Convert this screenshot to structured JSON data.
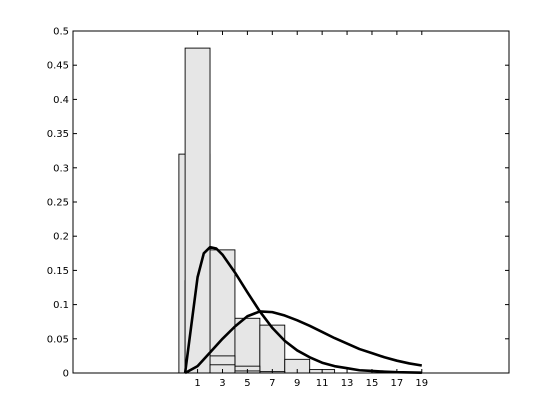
{
  "chart_data": {
    "type": "bar",
    "title": "",
    "xlabel": "",
    "ylabel": "",
    "xlim": [
      -9,
      26
    ],
    "ylim": [
      0,
      0.5
    ],
    "x_ticks": [
      1,
      3,
      5,
      7,
      9,
      11,
      13,
      15,
      17,
      19
    ],
    "y_ticks": [
      0,
      0.05,
      0.1,
      0.15,
      0.2,
      0.25,
      0.3,
      0.35,
      0.4,
      0.45,
      0.5
    ],
    "grid": false,
    "legend": "none",
    "colors": {
      "bar_fill": "#e6e6e6",
      "bar_edge": "#000000",
      "curve": "#000000"
    },
    "histograms": [
      {
        "bins": [
          {
            "x0": -0.5,
            "x1": 2.0,
            "value": 0.32
          },
          {
            "x0": 2.0,
            "x1": 4.0,
            "value": 0.18
          },
          {
            "x0": 4.0,
            "x1": 6.0,
            "value": 0.08
          },
          {
            "x0": 6.0,
            "x1": 8.0,
            "value": 0.07
          },
          {
            "x0": 8.0,
            "x1": 10.0,
            "value": 0.02
          },
          {
            "x0": 10.0,
            "x1": 12.0,
            "value": 0.005
          }
        ]
      },
      {
        "bins": [
          {
            "x0": 0.0,
            "x1": 2.0,
            "value": 0.135
          },
          {
            "x0": 2.0,
            "x1": 4.0,
            "value": 0.025
          },
          {
            "x0": 4.0,
            "x1": 6.0,
            "value": 0.01
          },
          {
            "x0": 6.0,
            "x1": 8.0,
            "value": 0.002
          }
        ]
      },
      {
        "bins": [
          {
            "x0": 0.0,
            "x1": 2.0,
            "value": 0.475
          },
          {
            "x0": 2.0,
            "x1": 4.0,
            "value": 0.012
          },
          {
            "x0": 4.0,
            "x1": 6.0,
            "value": 0.003
          }
        ]
      }
    ],
    "series": [
      {
        "points": [
          [
            0,
            0
          ],
          [
            0.5,
            0.07
          ],
          [
            1,
            0.14
          ],
          [
            1.5,
            0.175
          ],
          [
            2,
            0.184
          ],
          [
            2.5,
            0.182
          ],
          [
            3,
            0.173
          ],
          [
            4,
            0.147
          ],
          [
            5,
            0.118
          ],
          [
            6,
            0.09
          ],
          [
            7,
            0.066
          ],
          [
            8,
            0.047
          ],
          [
            9,
            0.033
          ],
          [
            10,
            0.023
          ],
          [
            11,
            0.015
          ],
          [
            12,
            0.01
          ],
          [
            13,
            0.007
          ],
          [
            14,
            0.004
          ],
          [
            15,
            0.003
          ],
          [
            16,
            0.002
          ],
          [
            17,
            0.0012
          ],
          [
            18,
            0.0008
          ],
          [
            19,
            0.0005
          ]
        ]
      },
      {
        "points": [
          [
            0,
            0
          ],
          [
            1,
            0.01
          ],
          [
            2,
            0.03
          ],
          [
            3,
            0.05
          ],
          [
            4,
            0.068
          ],
          [
            5,
            0.083
          ],
          [
            6,
            0.09
          ],
          [
            7,
            0.089
          ],
          [
            8,
            0.084
          ],
          [
            9,
            0.077
          ],
          [
            10,
            0.069
          ],
          [
            11,
            0.06
          ],
          [
            12,
            0.051
          ],
          [
            13,
            0.043
          ],
          [
            14,
            0.035
          ],
          [
            15,
            0.029
          ],
          [
            16,
            0.023
          ],
          [
            17,
            0.018
          ],
          [
            18,
            0.014
          ],
          [
            19,
            0.011
          ]
        ]
      }
    ]
  }
}
